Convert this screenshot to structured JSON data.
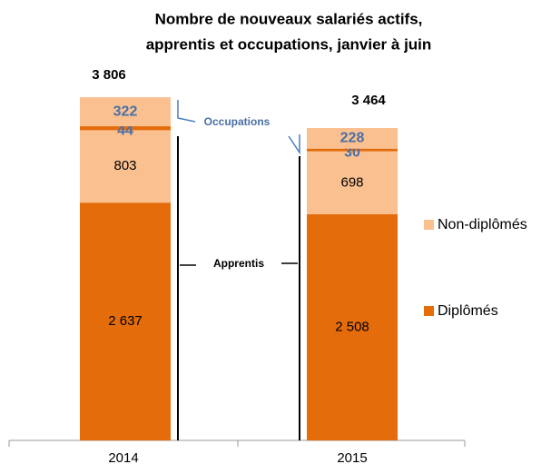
{
  "chart_data": {
    "type": "stacked-bar",
    "title": [
      "Nombre de nouveaux salariés actifs,",
      "apprentis  et occupations, janvier à juin"
    ],
    "categories": [
      "2014",
      "2015"
    ],
    "series": [
      {
        "name": "Diplômés",
        "color": "#e46c0a",
        "label_color": "#000000",
        "values": [
          2637,
          2508
        ],
        "value_labels": [
          "2 637",
          "2 508"
        ]
      },
      {
        "name": "Non-diplômés",
        "color": "#fac090",
        "label_color": "#000000",
        "values": [
          803,
          698
        ]
      },
      {
        "color": "#e46c0a",
        "label_color": "#4a6fa5",
        "values": [
          44,
          30
        ]
      },
      {
        "color": "#fac090",
        "label_color": "#4a6fa5",
        "values": [
          322,
          228
        ]
      }
    ],
    "totals": [
      3806,
      3464
    ],
    "total_labels": [
      "3 806",
      "3 464"
    ],
    "annotations": [
      "Occupations",
      "Apprentis"
    ]
  }
}
